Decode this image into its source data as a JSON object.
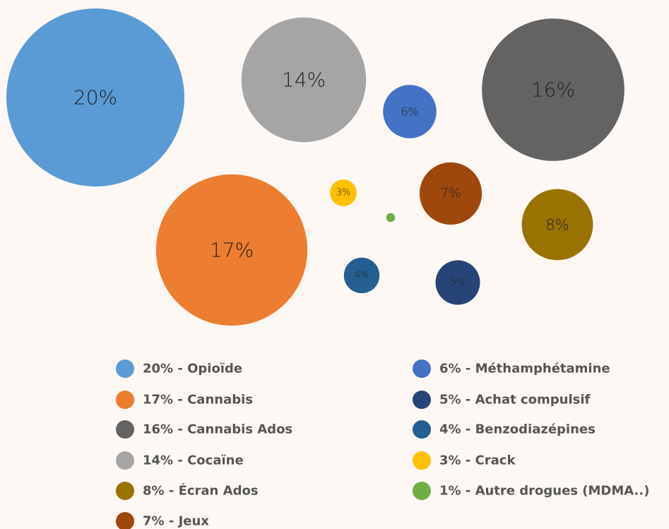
{
  "chart_data": {
    "type": "bubble",
    "categories": [
      "20% - Opioïde",
      "17% - Cannabis",
      "16% - Cannabis Ados",
      "14% - Cocaïne",
      "8% - Écran Ados",
      "7% - Jeux",
      "6% - Méthamphétamine",
      "5% - Achat compulsif",
      "4% - Benzodiazépines",
      "3% - Crack",
      "1% - Autre drogues (MDMA..)"
    ],
    "values": [
      20,
      17,
      16,
      14,
      8,
      7,
      6,
      5,
      4,
      3,
      1
    ],
    "value_labels": [
      "20%",
      "17%",
      "16%",
      "14%",
      "8%",
      "7%",
      "6%",
      "5%",
      "4%",
      "3%",
      null
    ],
    "colors": [
      "#5b9bd5",
      "#ed7d31",
      "#636363",
      "#a5a5a5",
      "#997300",
      "#9e480e",
      "#4472c4",
      "#264478",
      "#255e91",
      "#ffc000",
      "#70ad47"
    ],
    "legend": "bottom"
  }
}
